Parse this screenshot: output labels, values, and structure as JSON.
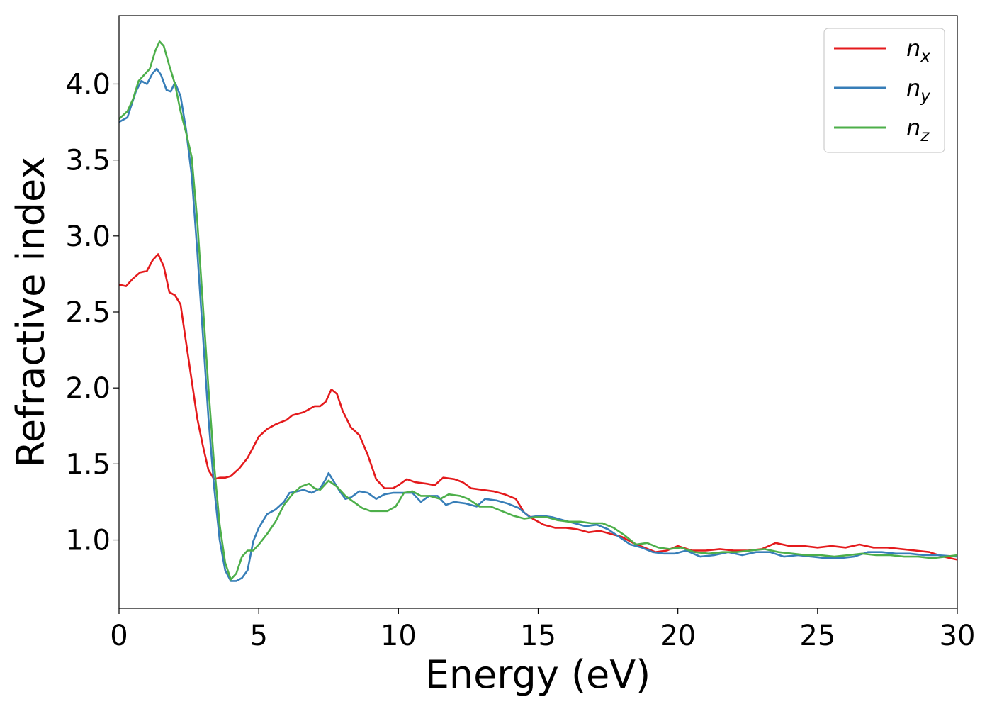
{
  "chart_data": {
    "type": "line",
    "title": "",
    "xlabel": "Energy (eV)",
    "ylabel": "Refractive index",
    "xlim": [
      0,
      30
    ],
    "ylim": [
      0.55,
      4.45
    ],
    "xticks": [
      0,
      5,
      10,
      15,
      20,
      25,
      30
    ],
    "xtick_labels": [
      "0",
      "5",
      "10",
      "15",
      "20",
      "25",
      "30"
    ],
    "yticks": [
      1.0,
      1.5,
      2.0,
      2.5,
      3.0,
      3.5,
      4.0
    ],
    "ytick_labels": [
      "1.0",
      "1.5",
      "2.0",
      "2.5",
      "3.0",
      "3.5",
      "4.0"
    ],
    "grid": false,
    "legend_position": "top-right",
    "series": [
      {
        "name": "n",
        "subscript": "x",
        "color": "#e41a1c",
        "points": [
          [
            0,
            2.68
          ],
          [
            0.25,
            2.67
          ],
          [
            0.5,
            2.72
          ],
          [
            0.75,
            2.76
          ],
          [
            1.0,
            2.77
          ],
          [
            1.2,
            2.84
          ],
          [
            1.4,
            2.88
          ],
          [
            1.6,
            2.8
          ],
          [
            1.8,
            2.63
          ],
          [
            2.0,
            2.61
          ],
          [
            2.2,
            2.55
          ],
          [
            2.4,
            2.3
          ],
          [
            2.6,
            2.05
          ],
          [
            2.8,
            1.8
          ],
          [
            3.0,
            1.62
          ],
          [
            3.2,
            1.46
          ],
          [
            3.4,
            1.4
          ],
          [
            3.6,
            1.41
          ],
          [
            3.8,
            1.41
          ],
          [
            4.0,
            1.42
          ],
          [
            4.3,
            1.47
          ],
          [
            4.6,
            1.54
          ],
          [
            5.0,
            1.68
          ],
          [
            5.3,
            1.73
          ],
          [
            5.6,
            1.76
          ],
          [
            6.0,
            1.79
          ],
          [
            6.2,
            1.82
          ],
          [
            6.6,
            1.84
          ],
          [
            7.0,
            1.88
          ],
          [
            7.2,
            1.88
          ],
          [
            7.4,
            1.91
          ],
          [
            7.6,
            1.99
          ],
          [
            7.8,
            1.96
          ],
          [
            8.0,
            1.85
          ],
          [
            8.3,
            1.74
          ],
          [
            8.6,
            1.69
          ],
          [
            8.9,
            1.56
          ],
          [
            9.2,
            1.4
          ],
          [
            9.5,
            1.34
          ],
          [
            9.8,
            1.34
          ],
          [
            10.0,
            1.36
          ],
          [
            10.3,
            1.4
          ],
          [
            10.6,
            1.38
          ],
          [
            11.0,
            1.37
          ],
          [
            11.3,
            1.36
          ],
          [
            11.6,
            1.41
          ],
          [
            12.0,
            1.4
          ],
          [
            12.3,
            1.38
          ],
          [
            12.6,
            1.34
          ],
          [
            13.0,
            1.33
          ],
          [
            13.4,
            1.32
          ],
          [
            13.8,
            1.3
          ],
          [
            14.2,
            1.27
          ],
          [
            14.5,
            1.18
          ],
          [
            14.8,
            1.14
          ],
          [
            15.2,
            1.1
          ],
          [
            15.6,
            1.08
          ],
          [
            16.0,
            1.08
          ],
          [
            16.4,
            1.07
          ],
          [
            16.8,
            1.05
          ],
          [
            17.2,
            1.06
          ],
          [
            17.6,
            1.04
          ],
          [
            18.0,
            1.02
          ],
          [
            18.4,
            0.98
          ],
          [
            18.8,
            0.95
          ],
          [
            19.2,
            0.92
          ],
          [
            19.6,
            0.93
          ],
          [
            20.0,
            0.96
          ],
          [
            20.5,
            0.93
          ],
          [
            21.0,
            0.93
          ],
          [
            21.5,
            0.94
          ],
          [
            22.0,
            0.93
          ],
          [
            22.5,
            0.93
          ],
          [
            23.0,
            0.94
          ],
          [
            23.5,
            0.98
          ],
          [
            24.0,
            0.96
          ],
          [
            24.5,
            0.96
          ],
          [
            25.0,
            0.95
          ],
          [
            25.5,
            0.96
          ],
          [
            26.0,
            0.95
          ],
          [
            26.5,
            0.97
          ],
          [
            27.0,
            0.95
          ],
          [
            27.5,
            0.95
          ],
          [
            28.0,
            0.94
          ],
          [
            28.5,
            0.93
          ],
          [
            29.0,
            0.92
          ],
          [
            29.5,
            0.89
          ],
          [
            30.0,
            0.87
          ]
        ]
      },
      {
        "name": "n",
        "subscript": "y",
        "color": "#377eb8",
        "points": [
          [
            0,
            3.75
          ],
          [
            0.3,
            3.78
          ],
          [
            0.6,
            3.95
          ],
          [
            0.8,
            4.02
          ],
          [
            1.0,
            4.0
          ],
          [
            1.2,
            4.07
          ],
          [
            1.35,
            4.1
          ],
          [
            1.5,
            4.06
          ],
          [
            1.7,
            3.96
          ],
          [
            1.85,
            3.95
          ],
          [
            2.0,
            4.01
          ],
          [
            2.2,
            3.92
          ],
          [
            2.4,
            3.7
          ],
          [
            2.6,
            3.4
          ],
          [
            2.8,
            2.9
          ],
          [
            3.0,
            2.35
          ],
          [
            3.2,
            1.8
          ],
          [
            3.4,
            1.35
          ],
          [
            3.6,
            1.0
          ],
          [
            3.8,
            0.8
          ],
          [
            4.0,
            0.73
          ],
          [
            4.2,
            0.73
          ],
          [
            4.4,
            0.75
          ],
          [
            4.6,
            0.8
          ],
          [
            4.8,
            0.99
          ],
          [
            5.0,
            1.08
          ],
          [
            5.3,
            1.17
          ],
          [
            5.6,
            1.2
          ],
          [
            5.9,
            1.25
          ],
          [
            6.1,
            1.31
          ],
          [
            6.4,
            1.32
          ],
          [
            6.6,
            1.33
          ],
          [
            6.9,
            1.31
          ],
          [
            7.2,
            1.34
          ],
          [
            7.4,
            1.4
          ],
          [
            7.5,
            1.44
          ],
          [
            7.7,
            1.38
          ],
          [
            7.9,
            1.32
          ],
          [
            8.1,
            1.27
          ],
          [
            8.3,
            1.28
          ],
          [
            8.6,
            1.32
          ],
          [
            8.9,
            1.31
          ],
          [
            9.2,
            1.27
          ],
          [
            9.5,
            1.3
          ],
          [
            9.8,
            1.31
          ],
          [
            10.2,
            1.31
          ],
          [
            10.5,
            1.31
          ],
          [
            10.8,
            1.25
          ],
          [
            11.1,
            1.29
          ],
          [
            11.4,
            1.29
          ],
          [
            11.7,
            1.23
          ],
          [
            12.0,
            1.25
          ],
          [
            12.4,
            1.24
          ],
          [
            12.8,
            1.22
          ],
          [
            13.1,
            1.27
          ],
          [
            13.5,
            1.26
          ],
          [
            13.9,
            1.24
          ],
          [
            14.3,
            1.21
          ],
          [
            14.7,
            1.15
          ],
          [
            15.1,
            1.16
          ],
          [
            15.5,
            1.15
          ],
          [
            15.9,
            1.13
          ],
          [
            16.3,
            1.11
          ],
          [
            16.7,
            1.09
          ],
          [
            17.1,
            1.1
          ],
          [
            17.5,
            1.07
          ],
          [
            17.9,
            1.02
          ],
          [
            18.3,
            0.97
          ],
          [
            18.7,
            0.95
          ],
          [
            19.1,
            0.92
          ],
          [
            19.5,
            0.91
          ],
          [
            19.9,
            0.91
          ],
          [
            20.3,
            0.93
          ],
          [
            20.8,
            0.89
          ],
          [
            21.3,
            0.9
          ],
          [
            21.8,
            0.92
          ],
          [
            22.3,
            0.9
          ],
          [
            22.8,
            0.92
          ],
          [
            23.3,
            0.92
          ],
          [
            23.8,
            0.89
          ],
          [
            24.3,
            0.9
          ],
          [
            24.8,
            0.89
          ],
          [
            25.3,
            0.88
          ],
          [
            25.8,
            0.88
          ],
          [
            26.3,
            0.89
          ],
          [
            26.8,
            0.92
          ],
          [
            27.3,
            0.92
          ],
          [
            27.8,
            0.91
          ],
          [
            28.3,
            0.91
          ],
          [
            28.8,
            0.9
          ],
          [
            29.3,
            0.9
          ],
          [
            30.0,
            0.89
          ]
        ]
      },
      {
        "name": "n",
        "subscript": "z",
        "color": "#4daf4a",
        "points": [
          [
            0,
            3.77
          ],
          [
            0.3,
            3.82
          ],
          [
            0.5,
            3.9
          ],
          [
            0.7,
            4.02
          ],
          [
            0.9,
            4.06
          ],
          [
            1.1,
            4.1
          ],
          [
            1.3,
            4.22
          ],
          [
            1.45,
            4.28
          ],
          [
            1.6,
            4.25
          ],
          [
            1.8,
            4.12
          ],
          [
            2.0,
            4.0
          ],
          [
            2.2,
            3.82
          ],
          [
            2.4,
            3.68
          ],
          [
            2.6,
            3.52
          ],
          [
            2.8,
            3.1
          ],
          [
            3.0,
            2.55
          ],
          [
            3.2,
            2.0
          ],
          [
            3.4,
            1.5
          ],
          [
            3.6,
            1.1
          ],
          [
            3.8,
            0.85
          ],
          [
            4.0,
            0.74
          ],
          [
            4.2,
            0.78
          ],
          [
            4.4,
            0.89
          ],
          [
            4.6,
            0.93
          ],
          [
            4.8,
            0.93
          ],
          [
            5.0,
            0.97
          ],
          [
            5.3,
            1.04
          ],
          [
            5.6,
            1.12
          ],
          [
            5.9,
            1.23
          ],
          [
            6.2,
            1.3
          ],
          [
            6.5,
            1.35
          ],
          [
            6.8,
            1.37
          ],
          [
            7.0,
            1.34
          ],
          [
            7.2,
            1.33
          ],
          [
            7.5,
            1.39
          ],
          [
            7.8,
            1.35
          ],
          [
            8.1,
            1.29
          ],
          [
            8.4,
            1.25
          ],
          [
            8.7,
            1.21
          ],
          [
            9.0,
            1.19
          ],
          [
            9.3,
            1.19
          ],
          [
            9.6,
            1.19
          ],
          [
            9.9,
            1.22
          ],
          [
            10.2,
            1.31
          ],
          [
            10.5,
            1.32
          ],
          [
            10.8,
            1.29
          ],
          [
            11.1,
            1.29
          ],
          [
            11.5,
            1.27
          ],
          [
            11.8,
            1.3
          ],
          [
            12.2,
            1.29
          ],
          [
            12.5,
            1.27
          ],
          [
            12.9,
            1.22
          ],
          [
            13.3,
            1.22
          ],
          [
            13.7,
            1.19
          ],
          [
            14.1,
            1.16
          ],
          [
            14.5,
            1.14
          ],
          [
            14.9,
            1.15
          ],
          [
            15.3,
            1.15
          ],
          [
            15.7,
            1.13
          ],
          [
            16.1,
            1.12
          ],
          [
            16.5,
            1.12
          ],
          [
            16.9,
            1.11
          ],
          [
            17.3,
            1.11
          ],
          [
            17.7,
            1.08
          ],
          [
            18.1,
            1.03
          ],
          [
            18.5,
            0.97
          ],
          [
            18.9,
            0.98
          ],
          [
            19.3,
            0.95
          ],
          [
            19.7,
            0.94
          ],
          [
            20.1,
            0.95
          ],
          [
            20.6,
            0.92
          ],
          [
            21.1,
            0.91
          ],
          [
            21.6,
            0.92
          ],
          [
            22.1,
            0.92
          ],
          [
            22.6,
            0.93
          ],
          [
            23.1,
            0.94
          ],
          [
            23.6,
            0.92
          ],
          [
            24.1,
            0.91
          ],
          [
            24.6,
            0.9
          ],
          [
            25.1,
            0.9
          ],
          [
            25.6,
            0.89
          ],
          [
            26.1,
            0.9
          ],
          [
            26.6,
            0.91
          ],
          [
            27.1,
            0.9
          ],
          [
            27.6,
            0.9
          ],
          [
            28.1,
            0.89
          ],
          [
            28.6,
            0.89
          ],
          [
            29.1,
            0.88
          ],
          [
            29.6,
            0.89
          ],
          [
            30.0,
            0.9
          ]
        ]
      }
    ]
  }
}
